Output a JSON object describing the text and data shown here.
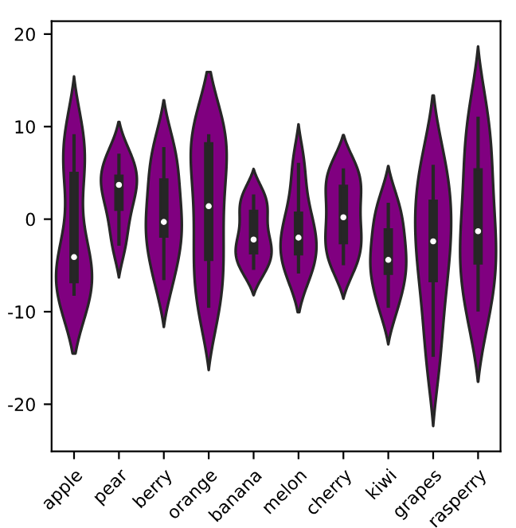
{
  "chart_data": {
    "type": "box",
    "categories": [
      "apple",
      "pear",
      "berry",
      "orange",
      "banana",
      "melon",
      "cherry",
      "kiwi",
      "grapes",
      "rasperry"
    ],
    "series": [
      {
        "color": "#262626",
        "boxes": [
          {
            "low": -8.1,
            "q1": -6.8,
            "median": -4.1,
            "q3": 5.0,
            "high": 9.0
          },
          {
            "low": -2.7,
            "q1": 1.0,
            "median": 3.7,
            "q3": 4.7,
            "high": 6.9
          },
          {
            "low": -6.4,
            "q1": -1.9,
            "median": -0.3,
            "q3": 4.3,
            "high": 7.6
          },
          {
            "low": -9.4,
            "q1": -4.4,
            "median": 1.4,
            "q3": 8.2,
            "high": 9.0
          },
          {
            "low": -5.3,
            "q1": -3.7,
            "median": -2.2,
            "q3": 0.9,
            "high": 2.5
          },
          {
            "low": -5.7,
            "q1": -3.8,
            "median": -2.0,
            "q3": 0.7,
            "high": 5.9
          },
          {
            "low": -4.8,
            "q1": -2.6,
            "median": 0.2,
            "q3": 3.6,
            "high": 5.3
          },
          {
            "low": -9.4,
            "q1": -5.9,
            "median": -4.4,
            "q3": -1.1,
            "high": 1.6
          },
          {
            "low": -14.7,
            "q1": -6.7,
            "median": -2.4,
            "q3": 2.0,
            "high": 5.7
          },
          {
            "low": -9.8,
            "q1": -4.8,
            "median": -1.3,
            "q3": 5.4,
            "high": 10.9
          }
        ]
      }
    ],
    "ylim": [
      -25.1,
      21.4
    ],
    "yticks": [
      -20,
      -10,
      0,
      10,
      20
    ],
    "grid": false,
    "legend": false
  }
}
